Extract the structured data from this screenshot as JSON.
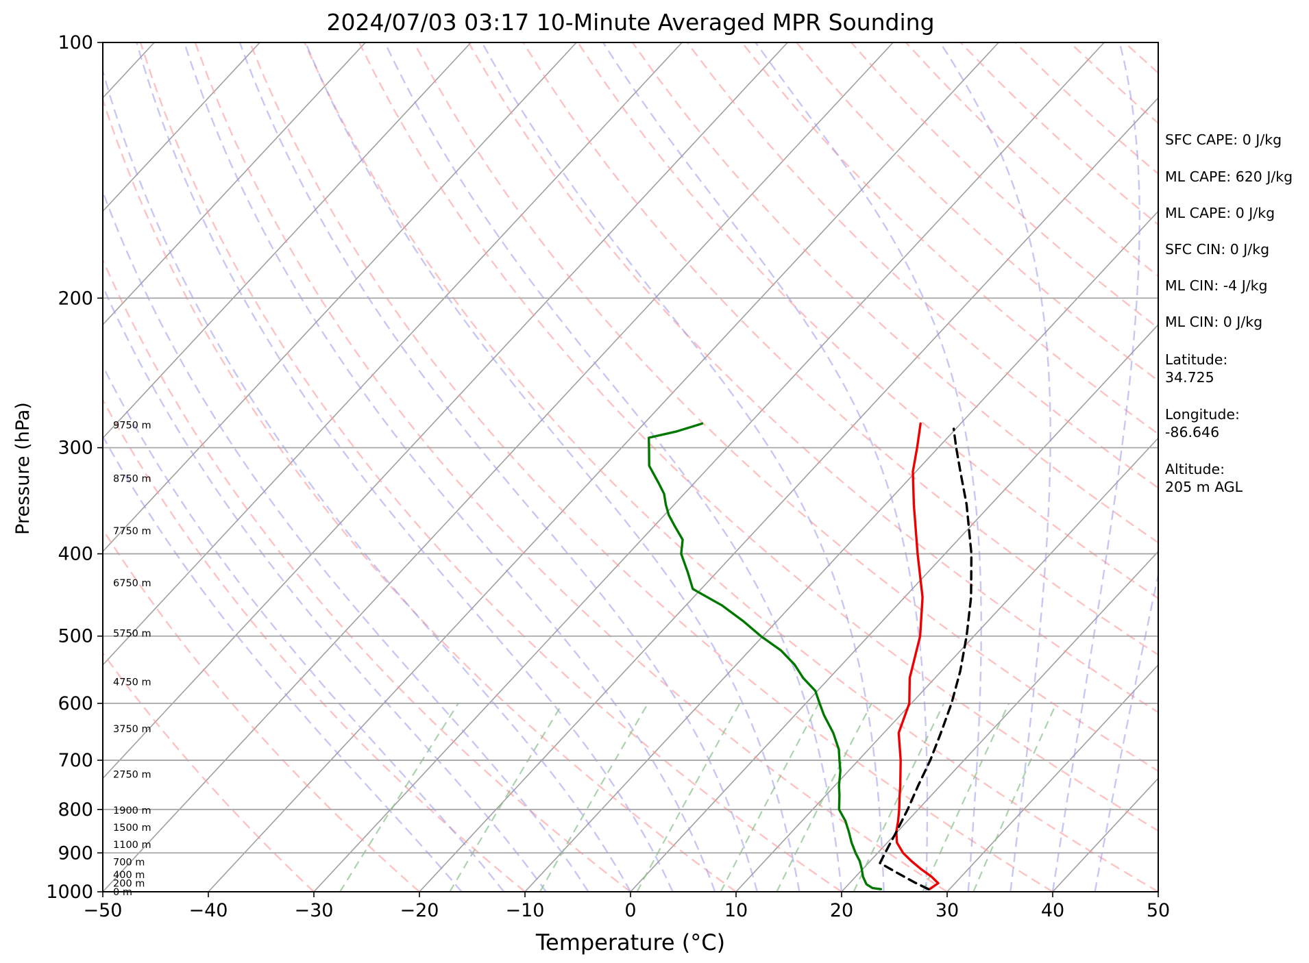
{
  "chart_data": {
    "type": "line",
    "title": "2024/07/03 03:17 10-Minute Averaged MPR Sounding",
    "xlabel": "Temperature (°C)",
    "ylabel": "Pressure (hPa)",
    "xlim": [
      -50,
      50
    ],
    "ylim": [
      1000,
      100
    ],
    "y_scale": "log",
    "skew": "skew-T",
    "x_ticks": [
      "−50",
      "−40",
      "−30",
      "−20",
      "−10",
      "0",
      "10",
      "20",
      "30",
      "40",
      "50"
    ],
    "y_ticks": [
      {
        "p": 100,
        "label": "100"
      },
      {
        "p": 200,
        "label": "200"
      },
      {
        "p": 300,
        "label": "300"
      },
      {
        "p": 400,
        "label": "400"
      },
      {
        "p": 500,
        "label": "500"
      },
      {
        "p": 600,
        "label": "600"
      },
      {
        "p": 700,
        "label": "700"
      },
      {
        "p": 800,
        "label": "800"
      },
      {
        "p": 900,
        "label": "900"
      },
      {
        "p": 1000,
        "label": "1000"
      }
    ],
    "grid": true,
    "height_labels": [
      {
        "p": 1000,
        "label": "0 m"
      },
      {
        "p": 977,
        "label": "200 m"
      },
      {
        "p": 955,
        "label": "400 m"
      },
      {
        "p": 922,
        "label": "700 m"
      },
      {
        "p": 880,
        "label": "1100 m"
      },
      {
        "p": 840,
        "label": "1500 m"
      },
      {
        "p": 802,
        "label": "1900 m"
      },
      {
        "p": 727,
        "label": "2750 m"
      },
      {
        "p": 643,
        "label": "3750 m"
      },
      {
        "p": 566,
        "label": "4750 m"
      },
      {
        "p": 496,
        "label": "5750 m"
      },
      {
        "p": 433,
        "label": "6750 m"
      },
      {
        "p": 376,
        "label": "7750 m"
      },
      {
        "p": 326,
        "label": "8750 m"
      },
      {
        "p": 282,
        "label": "9750 m"
      }
    ],
    "series": [
      {
        "role": "temperature",
        "color": "#ee0000",
        "style": "solid",
        "points": [
          {
            "p": 993,
            "t": 28.1
          },
          {
            "p": 977,
            "t": 28.4
          },
          {
            "p": 960,
            "t": 27.2
          },
          {
            "p": 940,
            "t": 25.5
          },
          {
            "p": 920,
            "t": 23.9
          },
          {
            "p": 900,
            "t": 22.4
          },
          {
            "p": 875,
            "t": 20.9
          },
          {
            "p": 850,
            "t": 19.9
          },
          {
            "p": 825,
            "t": 19.1
          },
          {
            "p": 800,
            "t": 18.2
          },
          {
            "p": 775,
            "t": 17.2
          },
          {
            "p": 750,
            "t": 16.2
          },
          {
            "p": 700,
            "t": 14.0
          },
          {
            "p": 650,
            "t": 11.4
          },
          {
            "p": 600,
            "t": 9.8
          },
          {
            "p": 560,
            "t": 7.6
          },
          {
            "p": 500,
            "t": 4.9
          },
          {
            "p": 450,
            "t": 1.7
          },
          {
            "p": 400,
            "t": -2.6
          },
          {
            "p": 350,
            "t": -7.3
          },
          {
            "p": 320,
            "t": -10.3
          },
          {
            "p": 300,
            "t": -12.0
          },
          {
            "p": 281,
            "t": -13.8
          }
        ]
      },
      {
        "role": "dewpoint",
        "color": "#007800",
        "style": "solid",
        "points": [
          {
            "p": 993,
            "t": 23.5
          },
          {
            "p": 990,
            "t": 22.6
          },
          {
            "p": 980,
            "t": 21.7
          },
          {
            "p": 960,
            "t": 20.7
          },
          {
            "p": 940,
            "t": 19.9
          },
          {
            "p": 920,
            "t": 19.0
          },
          {
            "p": 900,
            "t": 17.9
          },
          {
            "p": 875,
            "t": 16.6
          },
          {
            "p": 850,
            "t": 15.4
          },
          {
            "p": 825,
            "t": 14.1
          },
          {
            "p": 800,
            "t": 12.5
          },
          {
            "p": 770,
            "t": 11.3
          },
          {
            "p": 750,
            "t": 10.4
          },
          {
            "p": 720,
            "t": 9.2
          },
          {
            "p": 700,
            "t": 8.2
          },
          {
            "p": 680,
            "t": 7.2
          },
          {
            "p": 650,
            "t": 5.2
          },
          {
            "p": 620,
            "t": 2.8
          },
          {
            "p": 600,
            "t": 1.3
          },
          {
            "p": 580,
            "t": -0.2
          },
          {
            "p": 560,
            "t": -2.5
          },
          {
            "p": 540,
            "t": -4.5
          },
          {
            "p": 520,
            "t": -7.0
          },
          {
            "p": 500,
            "t": -10.2
          },
          {
            "p": 480,
            "t": -13.2
          },
          {
            "p": 460,
            "t": -16.6
          },
          {
            "p": 440,
            "t": -20.8
          },
          {
            "p": 420,
            "t": -22.8
          },
          {
            "p": 400,
            "t": -25.0
          },
          {
            "p": 385,
            "t": -26.1
          },
          {
            "p": 370,
            "t": -28.2
          },
          {
            "p": 360,
            "t": -29.6
          },
          {
            "p": 350,
            "t": -30.8
          },
          {
            "p": 340,
            "t": -31.9
          },
          {
            "p": 330,
            "t": -33.4
          },
          {
            "p": 315,
            "t": -35.8
          },
          {
            "p": 300,
            "t": -37.4
          },
          {
            "p": 292,
            "t": -38.3
          },
          {
            "p": 287,
            "t": -36.2
          },
          {
            "p": 281,
            "t": -34.5
          }
        ]
      },
      {
        "role": "parcel",
        "color": "#000000",
        "style": "dashed",
        "points": [
          {
            "p": 993,
            "t": 28.0
          },
          {
            "p": 975,
            "t": 26.1
          },
          {
            "p": 950,
            "t": 23.6
          },
          {
            "p": 925,
            "t": 21.1
          },
          {
            "p": 900,
            "t": 20.7
          },
          {
            "p": 850,
            "t": 19.9
          },
          {
            "p": 800,
            "t": 19.0
          },
          {
            "p": 750,
            "t": 17.9
          },
          {
            "p": 700,
            "t": 16.8
          },
          {
            "p": 650,
            "t": 15.4
          },
          {
            "p": 600,
            "t": 13.8
          },
          {
            "p": 550,
            "t": 11.8
          },
          {
            "p": 500,
            "t": 9.3
          },
          {
            "p": 450,
            "t": 6.3
          },
          {
            "p": 400,
            "t": 2.5
          },
          {
            "p": 350,
            "t": -2.3
          },
          {
            "p": 320,
            "t": -5.8
          },
          {
            "p": 300,
            "t": -8.3
          },
          {
            "p": 285,
            "t": -10.2
          }
        ]
      }
    ],
    "reference_lines": [
      {
        "kind": "isotherm",
        "color": "#808080",
        "style": "solid"
      },
      {
        "kind": "dry-adiabat",
        "color": "#ff9999",
        "style": "dashed"
      },
      {
        "kind": "moist-adiabat",
        "color": "#9999ee",
        "style": "dashed"
      },
      {
        "kind": "mixing-ratio",
        "color": "#88c088",
        "style": "dashed"
      }
    ]
  },
  "info_panel": {
    "sfc_cape": "SFC CAPE: 0 J/kg",
    "ml_cape_1": "ML CAPE: 620 J/kg",
    "ml_cape_2": "ML CAPE: 0 J/kg",
    "sfc_cin": "SFC CIN: 0 J/kg",
    "ml_cin_1": "ML CIN: -4 J/kg",
    "ml_cin_2": "ML CIN: 0 J/kg",
    "latitude_label": "Latitude:",
    "latitude_value": "34.725",
    "longitude_label": "Longitude:",
    "longitude_value": "-86.646",
    "altitude_label": "Altitude:",
    "altitude_value": "205 m AGL"
  }
}
